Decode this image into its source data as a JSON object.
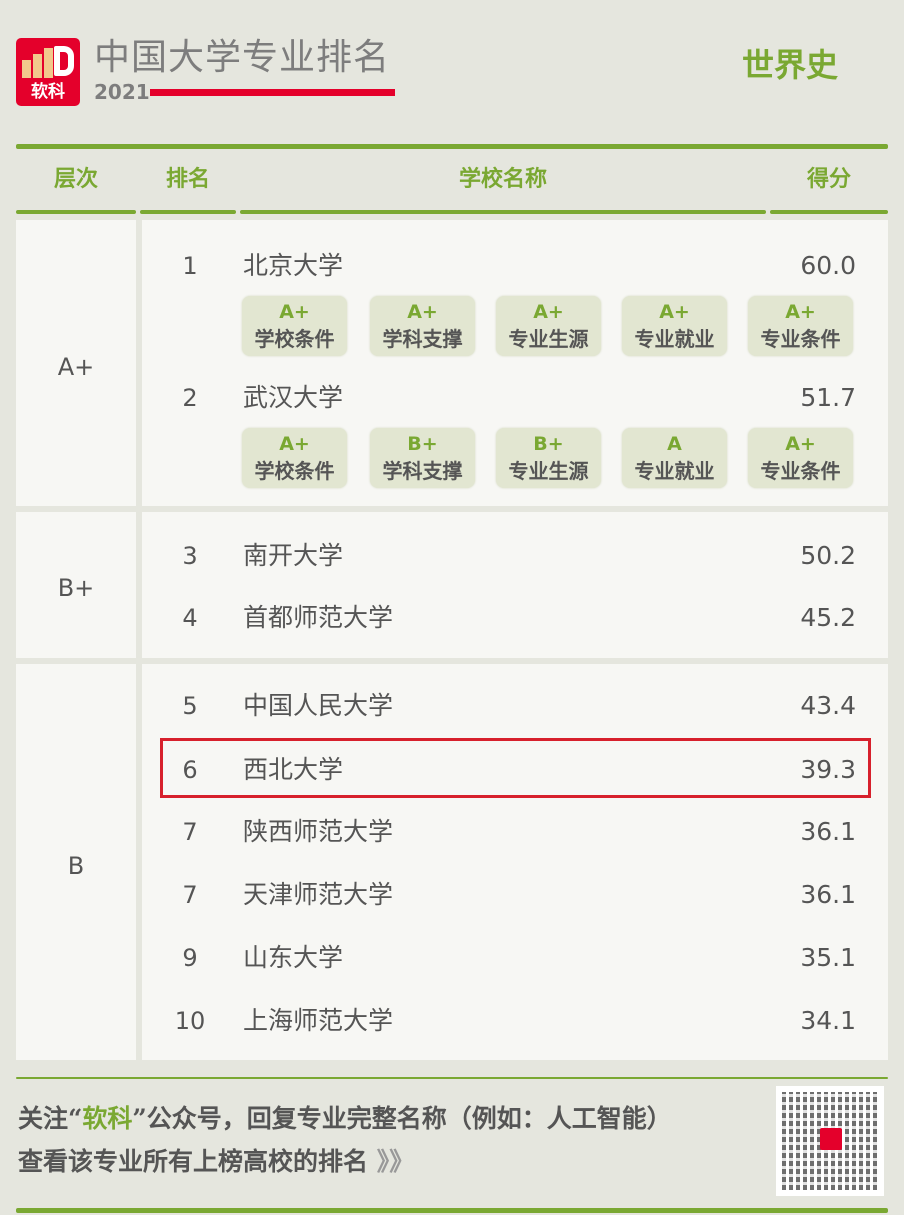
{
  "brand": {
    "logo_text": "软科",
    "title": "中国大学专业排名",
    "year": "2021"
  },
  "subject": "世界史",
  "headers": {
    "level": "层次",
    "rank": "排名",
    "school": "学校名称",
    "score": "得分"
  },
  "groups": [
    {
      "level": "A+",
      "rows": [
        {
          "rank": "1",
          "school": "北京大学",
          "score": "60.0",
          "badges": [
            {
              "grade": "A+",
              "label": "学校条件"
            },
            {
              "grade": "A+",
              "label": "学科支撑"
            },
            {
              "grade": "A+",
              "label": "专业生源"
            },
            {
              "grade": "A+",
              "label": "专业就业"
            },
            {
              "grade": "A+",
              "label": "专业条件"
            }
          ]
        },
        {
          "rank": "2",
          "school": "武汉大学",
          "score": "51.7",
          "badges": [
            {
              "grade": "A+",
              "label": "学校条件"
            },
            {
              "grade": "B+",
              "label": "学科支撑"
            },
            {
              "grade": "B+",
              "label": "专业生源"
            },
            {
              "grade": "A",
              "label": "专业就业"
            },
            {
              "grade": "A+",
              "label": "专业条件"
            }
          ]
        }
      ]
    },
    {
      "level": "B+",
      "rows": [
        {
          "rank": "3",
          "school": "南开大学",
          "score": "50.2"
        },
        {
          "rank": "4",
          "school": "首都师范大学",
          "score": "45.2"
        }
      ]
    },
    {
      "level": "B",
      "rows": [
        {
          "rank": "5",
          "school": "中国人民大学",
          "score": "43.4"
        },
        {
          "rank": "6",
          "school": "西北大学",
          "score": "39.3",
          "highlighted": true
        },
        {
          "rank": "7",
          "school": "陕西师范大学",
          "score": "36.1"
        },
        {
          "rank": "7",
          "school": "天津师范大学",
          "score": "36.1"
        },
        {
          "rank": "9",
          "school": "山东大学",
          "score": "35.1"
        },
        {
          "rank": "10",
          "school": "上海师范大学",
          "score": "34.1"
        }
      ]
    }
  ],
  "footer": {
    "line1_a": "关注“",
    "line1_k": "软科",
    "line1_b": "”公众号，回复专业完整名称（例如：人工智能）",
    "line2": "查看该专业所有上榜高校的排名",
    "arrows": "》》"
  },
  "colors": {
    "accent": "#7aa832",
    "brand": "#e4002b",
    "highlight": "#d7202c"
  }
}
